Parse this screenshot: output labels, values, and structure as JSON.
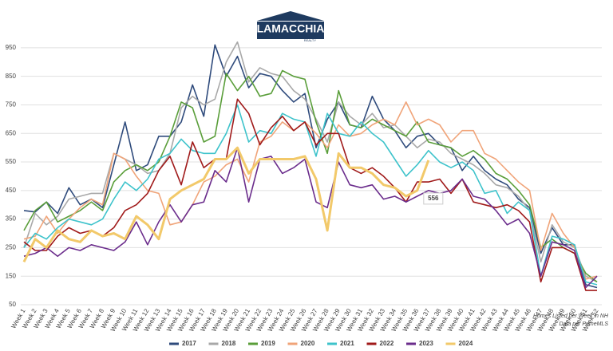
{
  "logo": {
    "name": "LAMACCHIA",
    "tagline": "REALTY"
  },
  "chart_data": {
    "type": "line",
    "categories": [
      "Week 1",
      "Week 2",
      "Week 3",
      "Week 4",
      "Week 5",
      "Week 6",
      "Week 7",
      "Week 8",
      "Week 9",
      "Week 10",
      "Week 11",
      "Week 12",
      "Week 13",
      "Week 14",
      "Week 15",
      "Week 16",
      "Week 17",
      "Week 18",
      "Week 19",
      "Week 20",
      "Week 21",
      "Week 22",
      "Week 23",
      "Week 24",
      "Week 25",
      "Week 26",
      "Week 27",
      "Week 28",
      "Week 29",
      "Week 30",
      "Week 31",
      "Week 32",
      "Week 33",
      "Week 34",
      "Week 35",
      "Week 36",
      "Week 37",
      "Week 38",
      "Week 39",
      "Week 40",
      "Week 41",
      "Week 42",
      "Week 43",
      "Week 44",
      "Week 45",
      "Week 46",
      "Week 47",
      "Week 48",
      "Week 49",
      "Week 50",
      "Week 51",
      "Week 52"
    ],
    "series": [
      {
        "name": "2017",
        "color": "#2f4b7c",
        "values": [
          380,
          375,
          410,
          370,
          460,
          400,
          420,
          390,
          540,
          690,
          520,
          540,
          640,
          640,
          690,
          820,
          710,
          960,
          850,
          920,
          810,
          860,
          850,
          800,
          760,
          790,
          600,
          700,
          760,
          680,
          670,
          780,
          700,
          660,
          600,
          640,
          650,
          610,
          600,
          520,
          570,
          520,
          490,
          470,
          420,
          390,
          230,
          320,
          260,
          260,
          120,
          110
        ]
      },
      {
        "name": "2018",
        "color": "#a8a8a8",
        "values": [
          250,
          370,
          330,
          360,
          420,
          430,
          440,
          440,
          580,
          560,
          540,
          510,
          520,
          580,
          740,
          780,
          750,
          770,
          900,
          970,
          830,
          880,
          860,
          850,
          800,
          770,
          700,
          620,
          760,
          710,
          680,
          720,
          670,
          680,
          640,
          600,
          630,
          620,
          580,
          560,
          540,
          510,
          470,
          460,
          430,
          380,
          200,
          330,
          270,
          250,
          150,
          130
        ]
      },
      {
        "name": "2019",
        "color": "#5a9e3a",
        "values": [
          310,
          380,
          410,
          340,
          360,
          380,
          410,
          380,
          480,
          520,
          540,
          520,
          550,
          640,
          760,
          740,
          620,
          640,
          860,
          800,
          850,
          780,
          790,
          870,
          850,
          840,
          690,
          580,
          800,
          680,
          670,
          700,
          680,
          660,
          640,
          690,
          620,
          610,
          600,
          570,
          590,
          560,
          510,
          490,
          450,
          400,
          250,
          280,
          250,
          230,
          160,
          130
        ]
      },
      {
        "name": "2020",
        "color": "#f0a479",
        "values": [
          280,
          290,
          360,
          300,
          350,
          390,
          420,
          400,
          580,
          560,
          500,
          450,
          440,
          330,
          340,
          400,
          480,
          500,
          540,
          560,
          480,
          620,
          640,
          690,
          660,
          690,
          650,
          600,
          680,
          640,
          650,
          680,
          700,
          680,
          760,
          680,
          700,
          680,
          620,
          660,
          660,
          580,
          560,
          520,
          480,
          450,
          240,
          370,
          300,
          250,
          140,
          150
        ]
      },
      {
        "name": "2021",
        "color": "#3ec3cb",
        "values": [
          250,
          300,
          280,
          320,
          350,
          340,
          330,
          350,
          420,
          480,
          450,
          490,
          560,
          580,
          630,
          590,
          580,
          580,
          650,
          750,
          620,
          660,
          650,
          720,
          700,
          690,
          570,
          720,
          650,
          640,
          690,
          650,
          620,
          560,
          500,
          540,
          590,
          550,
          530,
          550,
          520,
          440,
          450,
          370,
          410,
          380,
          150,
          290,
          280,
          260,
          130,
          120
        ]
      },
      {
        "name": "2022",
        "color": "#a01a1a",
        "values": [
          270,
          240,
          240,
          290,
          320,
          300,
          310,
          290,
          320,
          380,
          400,
          440,
          520,
          570,
          470,
          620,
          530,
          560,
          560,
          770,
          720,
          610,
          670,
          710,
          660,
          690,
          610,
          650,
          650,
          530,
          510,
          530,
          500,
          460,
          410,
          480,
          480,
          490,
          440,
          490,
          410,
          400,
          390,
          400,
          380,
          340,
          130,
          250,
          250,
          230,
          100,
          100
        ]
      },
      {
        "name": "2023",
        "color": "#6b2d8c",
        "values": [
          220,
          230,
          250,
          220,
          250,
          240,
          260,
          250,
          240,
          270,
          340,
          260,
          340,
          400,
          340,
          400,
          410,
          520,
          480,
          600,
          410,
          560,
          570,
          510,
          530,
          560,
          410,
          390,
          550,
          470,
          460,
          470,
          420,
          430,
          410,
          430,
          450,
          440,
          450,
          490,
          430,
          420,
          380,
          330,
          350,
          300,
          150,
          270,
          260,
          240,
          110,
          150
        ]
      },
      {
        "name": "2024",
        "color": "#f2c96a",
        "width": 3,
        "values": [
          200,
          280,
          250,
          310,
          280,
          270,
          310,
          290,
          300,
          280,
          360,
          330,
          280,
          420,
          450,
          470,
          490,
          560,
          560,
          600,
          510,
          560,
          560,
          560,
          560,
          570,
          490,
          310,
          580,
          530,
          530,
          510,
          470,
          460,
          430,
          450,
          556,
          null,
          null,
          null,
          null,
          null,
          null,
          null,
          null,
          null,
          null,
          null,
          null,
          null,
          null,
          null
        ]
      }
    ],
    "value_label": {
      "series": 7,
      "index": 36
    },
    "ylim": [
      50,
      1000
    ],
    "yticks": [
      50,
      150,
      250,
      350,
      450,
      550,
      650,
      750,
      850,
      950
    ],
    "grid": true,
    "notes": [
      "Homes Listed per Week in NH",
      "Data per PrimeMLS"
    ]
  }
}
